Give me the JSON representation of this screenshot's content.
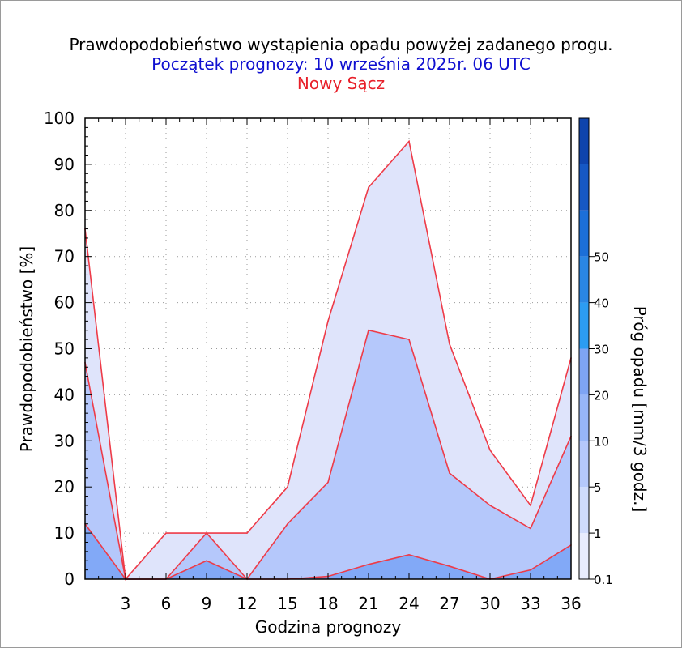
{
  "chart_data": {
    "type": "area",
    "title": "Prawdopodobieństwo wystąpienia opadu powyżej zadanego progu.",
    "subtitle": "Początek prognozy: 10 września 2025r. 06 UTC",
    "location": "Nowy Sącz",
    "xlabel": "Godzina prognozy",
    "ylabel": "Prawdopodobieństwo [%]",
    "colorbar_label": "Próg opadu [mm/3 godz.]",
    "x": [
      0,
      3,
      6,
      9,
      12,
      15,
      18,
      21,
      24,
      27,
      30,
      33,
      36
    ],
    "xlim": [
      0,
      36
    ],
    "ylim": [
      0,
      100
    ],
    "x_ticks": [
      "3",
      "6",
      "9",
      "12",
      "15",
      "18",
      "21",
      "24",
      "27",
      "30",
      "33",
      "36"
    ],
    "y_ticks": [
      "0",
      "10",
      "20",
      "30",
      "40",
      "50",
      "60",
      "70",
      "80",
      "90",
      "100"
    ],
    "grid": true,
    "series": [
      {
        "threshold": "0.1",
        "color": "#dfe4fb",
        "values": [
          76,
          0,
          10,
          10,
          10,
          20,
          56,
          85,
          95,
          51,
          28,
          16,
          48
        ]
      },
      {
        "threshold": "1",
        "color": "#b5c8fb",
        "values": [
          47,
          0,
          0,
          10,
          0,
          12,
          21,
          54,
          52,
          23,
          16,
          11,
          31
        ]
      },
      {
        "threshold": "5",
        "color": "#82a9f7",
        "values": [
          12,
          0,
          0,
          4,
          0,
          0,
          0.6,
          3.2,
          5.3,
          2.8,
          0,
          2,
          7.4
        ]
      }
    ],
    "colorbar": {
      "labels": [
        "0.1",
        "1",
        "5",
        "10",
        "20",
        "30",
        "40",
        "50"
      ],
      "colors": [
        "#e8ecfd",
        "#cfdbfc",
        "#b5c8fb",
        "#97b6f8",
        "#7ea4f4",
        "#2c9cf2",
        "#2a86e4",
        "#1c6fd8",
        "#1658c4",
        "#0f44ad"
      ]
    }
  }
}
